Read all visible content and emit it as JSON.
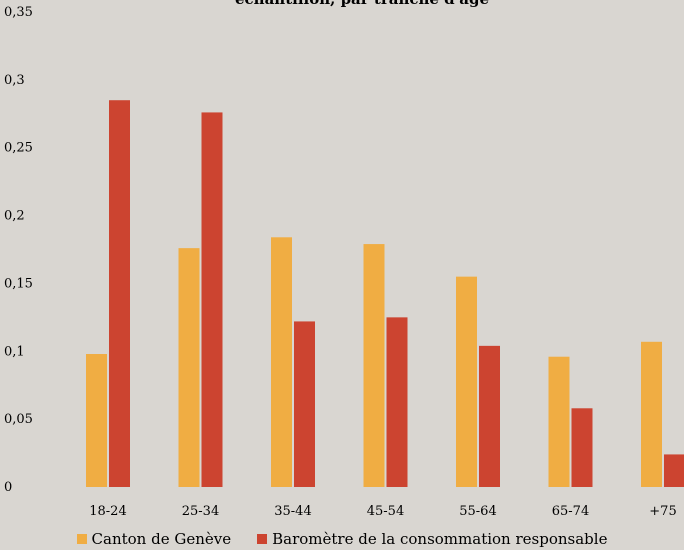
{
  "chart_data": {
    "type": "bar",
    "title": "échantillon, par tranche d'âge",
    "xlabel": "",
    "ylabel": "",
    "ylim": [
      0,
      0.35
    ],
    "y_ticks": [
      "0",
      "0,05",
      "0,1",
      "0,15",
      "0,2",
      "0,25",
      "0,3",
      "0,35"
    ],
    "y_tick_values": [
      0,
      0.05,
      0.1,
      0.15,
      0.2,
      0.25,
      0.3,
      0.35
    ],
    "categories": [
      "18-24",
      "25-34",
      "35-44",
      "45-54",
      "55-64",
      "65-74",
      "+75"
    ],
    "series": [
      {
        "name": "Canton de Genève",
        "color": "#f0ad43",
        "values": [
          0.098,
          0.176,
          0.184,
          0.179,
          0.155,
          0.096,
          0.107
        ]
      },
      {
        "name": "Baromètre de la consommation responsable",
        "color": "#cc4430",
        "values": [
          0.285,
          0.276,
          0.122,
          0.125,
          0.104,
          0.058,
          0.024
        ]
      }
    ],
    "grid": false,
    "legend_position": "bottom"
  }
}
